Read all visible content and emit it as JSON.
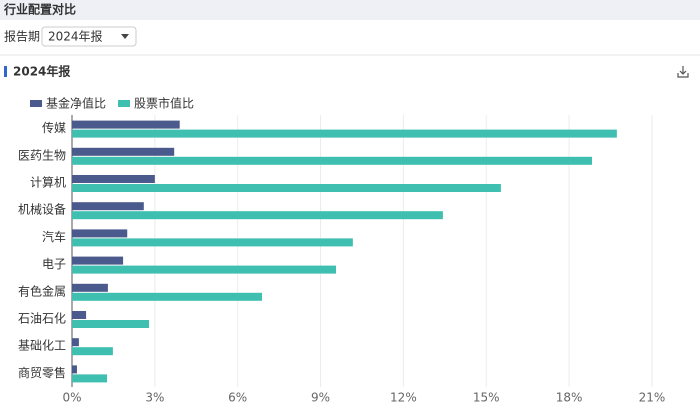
{
  "header": {
    "title": "行业配置对比"
  },
  "filter": {
    "label": "报告期",
    "value": "2024年报"
  },
  "section": {
    "title": "2024年报"
  },
  "chart_data": {
    "type": "hbar",
    "categories": [
      "传媒",
      "医药生物",
      "计算机",
      "机械设备",
      "汽车",
      "电子",
      "有色金属",
      "石油石化",
      "基础化工",
      "商贸零售"
    ],
    "series": [
      {
        "name": "基金净值比",
        "color": "#4a5a8c",
        "values": [
          3.9,
          3.7,
          3.0,
          2.6,
          2.0,
          1.85,
          1.3,
          0.51,
          0.25,
          0.18
        ]
      },
      {
        "name": "股票市值比",
        "color": "#3fbfb0",
        "values": [
          19.73,
          18.83,
          15.53,
          13.43,
          10.17,
          9.56,
          6.88,
          2.79,
          1.48,
          1.27
        ]
      }
    ],
    "xlim": [
      0,
      22.4
    ],
    "xticks": [
      {
        "value": 0,
        "label": "0%"
      },
      {
        "value": 3,
        "label": "3%"
      },
      {
        "value": 6,
        "label": "6%"
      },
      {
        "value": 9,
        "label": "9%"
      },
      {
        "value": 12,
        "label": "12%"
      },
      {
        "value": 15,
        "label": "15%"
      },
      {
        "value": 18,
        "label": "18%"
      },
      {
        "value": 21,
        "label": "21%"
      }
    ],
    "grid": true
  }
}
